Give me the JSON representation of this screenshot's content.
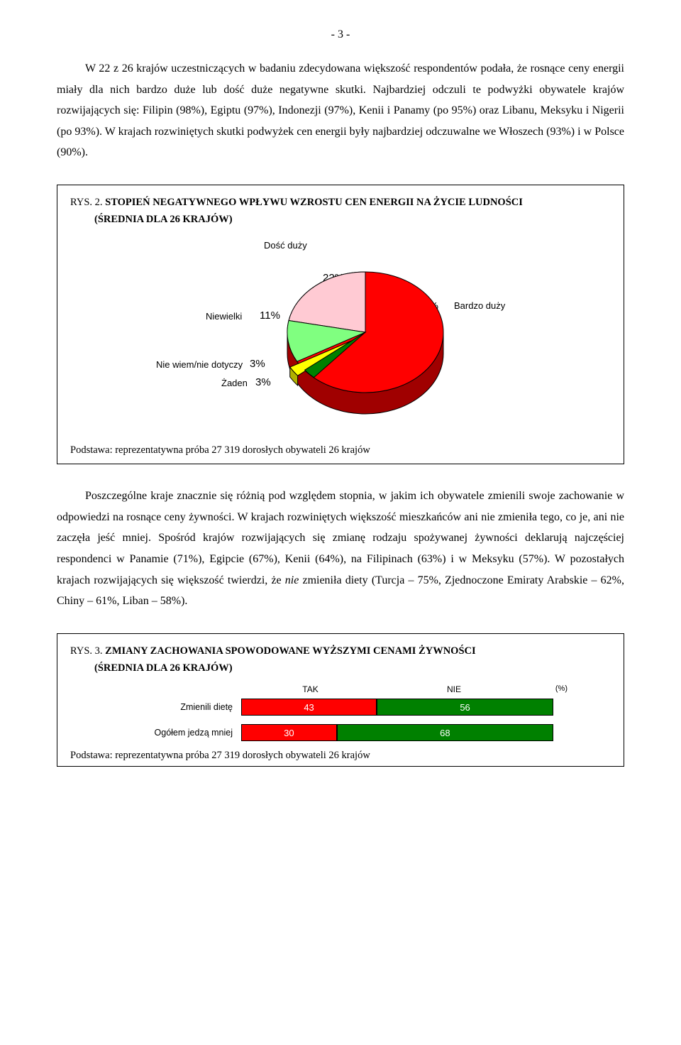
{
  "page_number": "- 3 -",
  "paragraph1": "W 22 z 26 krajów uczestniczących w badaniu zdecydowana większość respondentów podała, że rosnące ceny energii miały dla nich bardzo duże lub dość duże negatywne skutki. Najbardziej odczuli te podwyżki obywatele krajów rozwijających się: Filipin (98%), Egiptu (97%), Indonezji (97%), Kenii i Panamy (po 95%) oraz Libanu, Meksyku i Nigerii (po 93%). W krajach rozwiniętych skutki podwyżek cen energii były najbardziej odczuwalne we Włoszech (93%) i w Polsce (90%).",
  "fig2": {
    "prefix": "RYS. 2. ",
    "title_bold": "STOPIEŃ NEGATYWNEGO WPŁYWU WZROSTU CEN ENERGII NA ŻYCIE LUDNOŚCI",
    "subtitle": "(ŚREDNIA DLA 26 KRAJÓW)",
    "labels": {
      "dosc_duzy": "Dość duży",
      "niewielki": "Niewielki",
      "nie_wiem": "Nie wiem/nie dotyczy",
      "zaden": "Żaden",
      "bardzo_duzy": "Bardzo duży"
    },
    "pct": {
      "dosc_duzy": "22%",
      "niewielki": "11%",
      "nie_wiem": "3%",
      "zaden": "3%",
      "bardzo_duzy": "60%"
    },
    "colors": {
      "bardzo_duzy": "#ff0000",
      "dosc_duzy": "#ffcad3",
      "niewielki": "#80ff80",
      "zaden": "#008000",
      "nie_wiem": "#ffff00",
      "stroke": "#000000",
      "side": "#a00000"
    },
    "caption": "Podstawa: reprezentatywna próba 27 319 dorosłych obywateli 26 krajów"
  },
  "paragraph2_parts": {
    "p1": "Poszczególne kraje znacznie się różnią pod względem stopnia, w jakim ich obywatele zmienili swoje zachowanie w odpowiedzi na rosnące ceny żywności. W krajach rozwiniętych większość mieszkańców ani nie zmieniła tego, co je, ani nie zaczęła jeść mniej. Spośród krajów rozwijających się zmianę rodzaju spożywanej żywności deklarują najczęściej respondenci w Panamie (71%), Egipcie (67%), Kenii (64%), na Filipinach (63%) i w Meksyku (57%). W pozostałych krajach rozwijających się większość twierdzi, że ",
    "nie": "nie",
    "p2": " zmieniła diety (Turcja – 75%, Zjednoczone Emiraty Arabskie – 62%, Chiny – 61%, Liban – 58%)."
  },
  "fig3": {
    "prefix": "RYS. 3. ",
    "title_bold": "ZMIANY ZACHOWANIA SPOWODOWANE WYŻSZYMI CENAMI ŻYWNOŚCI",
    "subtitle": "(ŚREDNIA DLA 26 KRAJÓW)",
    "header": {
      "tak": "TAK",
      "nie": "NIE",
      "pct": "(%)"
    },
    "rows": [
      {
        "label": "Zmienili dietę",
        "tak": 43,
        "nie": 56
      },
      {
        "label": "Ogółem jedzą mniej",
        "tak": 30,
        "nie": 68
      }
    ],
    "colors": {
      "tak": "#ff0000",
      "nie": "#008000"
    },
    "caption": "Podstawa: reprezentatywna próba 27 319 dorosłych obywateli 26 krajów"
  }
}
